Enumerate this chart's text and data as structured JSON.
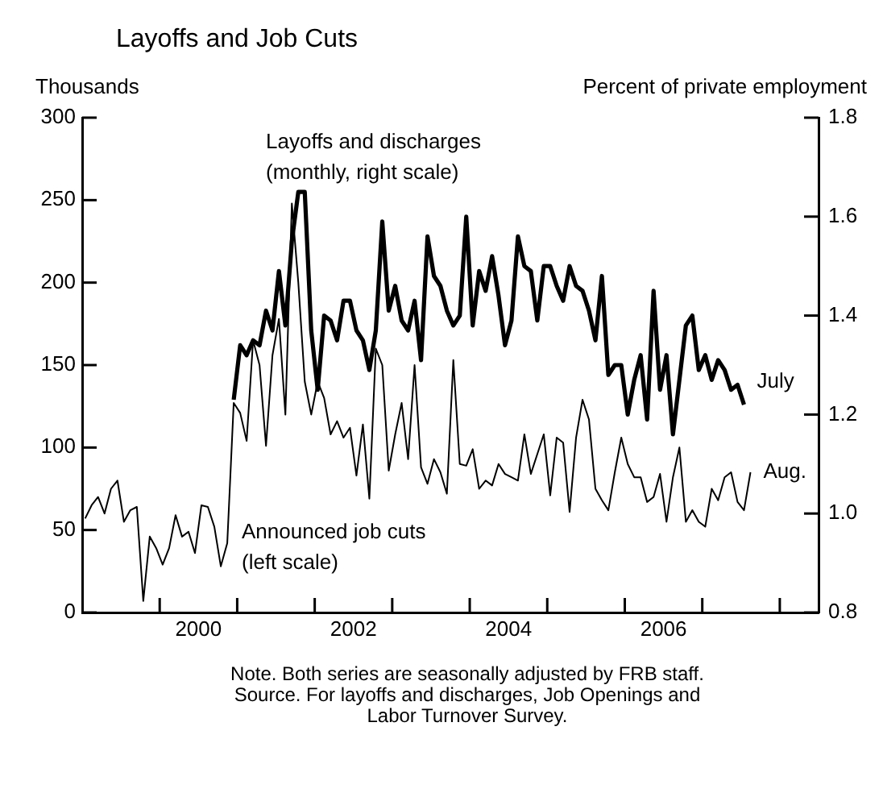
{
  "chart_data": {
    "type": "line",
    "title": "Layoffs and Job Cuts",
    "ylabel": "Thousands",
    "y2label": "Percent of private employment",
    "xlim": [
      "1999-01-01",
      "2008-07-01"
    ],
    "xticks": [
      {
        "value": "2000-01-01",
        "label": null
      },
      {
        "value": "2000-07-01",
        "label": "2000"
      },
      {
        "value": "2001-01-01",
        "label": null
      },
      {
        "value": "2002-01-01",
        "label": null
      },
      {
        "value": "2002-07-01",
        "label": "2002"
      },
      {
        "value": "2003-01-01",
        "label": null
      },
      {
        "value": "2004-01-01",
        "label": null
      },
      {
        "value": "2004-07-01",
        "label": "2004"
      },
      {
        "value": "2005-01-01",
        "label": null
      },
      {
        "value": "2006-01-01",
        "label": null
      },
      {
        "value": "2006-07-01",
        "label": "2006"
      },
      {
        "value": "2007-01-01",
        "label": null
      },
      {
        "value": "2008-01-01",
        "label": null
      }
    ],
    "ylim": [
      0,
      300
    ],
    "yticks": [
      0,
      50,
      100,
      150,
      200,
      250,
      300
    ],
    "y2lim": [
      0.8,
      1.8
    ],
    "y2ticks": [
      0.8,
      {
        "value": 1,
        "label": "1.0"
      },
      1.2,
      1.4,
      1.6,
      1.8
    ],
    "legend": false,
    "series": [
      {
        "name": "Layoffs and discharges (monthly, right scale)",
        "color": "#000000",
        "axis": "y2",
        "x": [
          "2000-12-15",
          "2001-01-15",
          "2001-02-15",
          "2001-03-15",
          "2001-04-15",
          "2001-05-15",
          "2001-06-15",
          "2001-07-15",
          "2001-08-15",
          "2001-09-15",
          "2001-10-15",
          "2001-11-15",
          "2001-12-15",
          "2002-01-15",
          "2002-02-15",
          "2002-03-15",
          "2002-04-15",
          "2002-05-15",
          "2002-06-15",
          "2002-07-15",
          "2002-08-15",
          "2002-09-15",
          "2002-10-15",
          "2002-11-15",
          "2002-12-15",
          "2003-01-15",
          "2003-02-15",
          "2003-03-15",
          "2003-04-15",
          "2003-05-15",
          "2003-06-15",
          "2003-07-15",
          "2003-08-15",
          "2003-09-15",
          "2003-10-15",
          "2003-11-15",
          "2003-12-15",
          "2004-01-15",
          "2004-02-15",
          "2004-03-15",
          "2004-04-15",
          "2004-05-15",
          "2004-06-15",
          "2004-07-15",
          "2004-08-15",
          "2004-09-15",
          "2004-10-15",
          "2004-11-15",
          "2004-12-15",
          "2005-01-15",
          "2005-02-15",
          "2005-03-15",
          "2005-04-15",
          "2005-05-15",
          "2005-06-15",
          "2005-07-15",
          "2005-08-15",
          "2005-09-15",
          "2005-10-15",
          "2005-11-15",
          "2005-12-15",
          "2006-01-15",
          "2006-02-15",
          "2006-03-15",
          "2006-04-15",
          "2006-05-15",
          "2006-06-15",
          "2006-07-15",
          "2006-08-15",
          "2006-09-15",
          "2006-10-15",
          "2006-11-15",
          "2006-12-15",
          "2007-01-15",
          "2007-02-15",
          "2007-03-15",
          "2007-04-15",
          "2007-05-15",
          "2007-06-15",
          "2007-07-15"
        ],
        "values": [
          1.23,
          1.34,
          1.32,
          1.35,
          1.34,
          1.41,
          1.37,
          1.49,
          1.38,
          1.55,
          1.65,
          1.65,
          1.37,
          1.25,
          1.4,
          1.39,
          1.35,
          1.43,
          1.43,
          1.37,
          1.35,
          1.29,
          1.37,
          1.59,
          1.41,
          1.46,
          1.39,
          1.37,
          1.43,
          1.31,
          1.56,
          1.48,
          1.46,
          1.41,
          1.38,
          1.4,
          1.6,
          1.38,
          1.49,
          1.45,
          1.52,
          1.44,
          1.34,
          1.39,
          1.56,
          1.5,
          1.49,
          1.39,
          1.5,
          1.5,
          1.46,
          1.43,
          1.5,
          1.46,
          1.45,
          1.41,
          1.35,
          1.48,
          1.28,
          1.3,
          1.3,
          1.2,
          1.27,
          1.32,
          1.19,
          1.45,
          1.25,
          1.32,
          1.16,
          1.27,
          1.38,
          1.4,
          1.29,
          1.32,
          1.27,
          1.31,
          1.29,
          1.25,
          1.26,
          1.22
        ]
      },
      {
        "name": "Announced job cuts (left scale)",
        "color": "#000000",
        "axis": "y",
        "x": [
          "1999-01-15",
          "1999-02-15",
          "1999-03-15",
          "1999-04-15",
          "1999-05-15",
          "1999-06-15",
          "1999-07-15",
          "1999-08-15",
          "1999-09-15",
          "1999-10-15",
          "1999-11-15",
          "1999-12-15",
          "2000-01-15",
          "2000-02-15",
          "2000-03-15",
          "2000-04-15",
          "2000-05-15",
          "2000-06-15",
          "2000-07-15",
          "2000-08-15",
          "2000-09-15",
          "2000-10-15",
          "2000-11-15",
          "2000-12-15",
          "2001-01-15",
          "2001-02-15",
          "2001-03-15",
          "2001-04-15",
          "2001-05-15",
          "2001-06-15",
          "2001-07-15",
          "2001-08-15",
          "2001-09-15",
          "2001-10-15",
          "2001-11-15",
          "2001-12-15",
          "2002-01-15",
          "2002-02-15",
          "2002-03-15",
          "2002-04-15",
          "2002-05-15",
          "2002-06-15",
          "2002-07-15",
          "2002-08-15",
          "2002-09-15",
          "2002-10-15",
          "2002-11-15",
          "2002-12-15",
          "2003-01-15",
          "2003-02-15",
          "2003-03-15",
          "2003-04-15",
          "2003-05-15",
          "2003-06-15",
          "2003-07-15",
          "2003-08-15",
          "2003-09-15",
          "2003-10-15",
          "2003-11-15",
          "2003-12-15",
          "2004-01-15",
          "2004-02-15",
          "2004-03-15",
          "2004-04-15",
          "2004-05-15",
          "2004-06-15",
          "2004-07-15",
          "2004-08-15",
          "2004-09-15",
          "2004-10-15",
          "2004-11-15",
          "2004-12-15",
          "2005-01-15",
          "2005-02-15",
          "2005-03-15",
          "2005-04-15",
          "2005-05-15",
          "2005-06-15",
          "2005-07-15",
          "2005-08-15",
          "2005-09-15",
          "2005-10-15",
          "2005-11-15",
          "2005-12-15",
          "2006-01-15",
          "2006-02-15",
          "2006-03-15",
          "2006-04-15",
          "2006-05-15",
          "2006-06-15",
          "2006-07-15",
          "2006-08-15",
          "2006-09-15",
          "2006-10-15",
          "2006-11-15",
          "2006-12-15",
          "2007-01-15",
          "2007-02-15",
          "2007-03-15",
          "2007-04-15",
          "2007-05-15",
          "2007-06-15",
          "2007-07-15",
          "2007-08-15"
        ],
        "values": [
          57,
          65,
          70,
          60,
          75,
          80,
          55,
          62,
          64,
          7,
          46,
          39,
          29,
          39,
          59,
          46,
          49,
          36,
          65,
          64,
          52,
          28,
          42,
          127,
          121,
          104,
          165,
          150,
          101,
          156,
          178,
          120,
          248,
          200,
          140,
          120,
          140,
          130,
          108,
          116,
          106,
          112,
          83,
          114,
          69,
          160,
          150,
          86,
          108,
          127,
          93,
          150,
          88,
          78,
          93,
          85,
          72,
          153,
          90,
          89,
          99,
          75,
          80,
          77,
          90,
          84,
          82,
          80,
          108,
          84,
          96,
          108,
          71,
          106,
          103,
          61,
          106,
          129,
          117,
          75,
          68,
          62,
          85,
          106,
          90,
          82,
          82,
          67,
          70,
          84,
          55,
          82,
          100,
          55,
          62,
          55,
          52,
          75,
          68,
          82,
          85,
          67,
          62,
          85
        ]
      }
    ],
    "annotations": [
      "July",
      "Aug.",
      "Note. Both series are seasonally adjusted by FRB staff.",
      "Source. For layoffs and discharges, Job Openings and Labor Turnover Survey."
    ]
  }
}
